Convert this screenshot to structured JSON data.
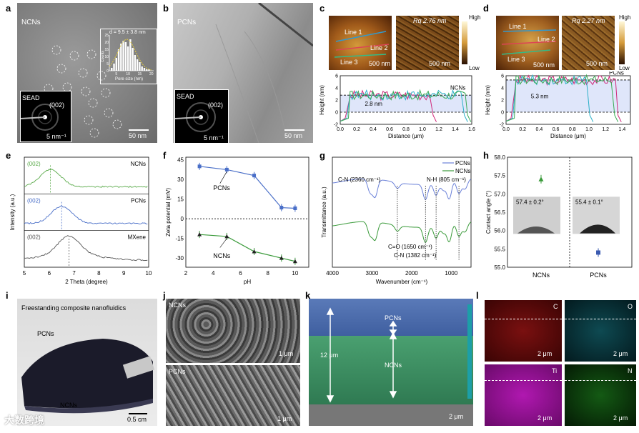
{
  "panels": {
    "a": {
      "letter": "a",
      "title": "NCNs",
      "inset_label": "d = 9.5 ± 3.8 nm",
      "inset_xlabel": "Pore size (nm)",
      "inset_ylabel": "Counts",
      "inset_xticks": [
        "5",
        "10",
        "15",
        "20"
      ],
      "inset_yticks": [
        "0",
        "5",
        "10",
        "15",
        "20",
        "25"
      ],
      "sead": "SEAD",
      "sead_ring": "(002)",
      "sead_scale": "5 nm⁻¹",
      "scale": "50 nm"
    },
    "b": {
      "letter": "b",
      "title": "PCNs",
      "sead": "SEAD",
      "sead_ring": "(002)",
      "sead_scale": "5 nm⁻¹",
      "scale": "50 nm"
    },
    "c": {
      "letter": "c",
      "line1": "Line 1",
      "line2": "Line 2",
      "line3": "Line 3",
      "scale1": "500 nm",
      "rq": "Rq 2.76 nm",
      "scale2": "500 nm",
      "high": "High",
      "low": "Low",
      "sample": "NCNs",
      "thickness": "2.8 nm",
      "ylabel": "Height (nm)",
      "xlabel": "Distance (μm)",
      "xticks": [
        "0.0",
        "0.2",
        "0.4",
        "0.6",
        "0.8",
        "1.0",
        "1.2",
        "1.4",
        "1.6"
      ],
      "yticks": [
        "-2",
        "0",
        "2",
        "4",
        "6"
      ]
    },
    "d": {
      "letter": "d",
      "line1": "Line 1",
      "line2": "Line 2",
      "line3": "Line 3",
      "scale1": "500 nm",
      "rq": "Rq 2.27 nm",
      "scale2": "500 nm",
      "high": "High",
      "low": "Low",
      "sample": "PCNs",
      "thickness": "5.3 nm",
      "ylabel": "Height (nm)",
      "xlabel": "Distance (μm)",
      "xticks": [
        "0.0",
        "0.2",
        "0.4",
        "0.6",
        "0.8",
        "1.0",
        "1.2",
        "1.4"
      ],
      "yticks": [
        "-2",
        "0",
        "2",
        "4",
        "6"
      ]
    },
    "e": {
      "letter": "e",
      "ylabel": "Intensity (a.u.)",
      "xlabel": "2 Theta (degree)",
      "xticks": [
        "5",
        "6",
        "7",
        "8",
        "9",
        "10"
      ],
      "traces": [
        {
          "peak": "(002)",
          "name": "NCNs",
          "color": "#5aaa4a"
        },
        {
          "peak": "(002)",
          "name": "PCNs",
          "color": "#4a6fc8"
        },
        {
          "peak": "(002)",
          "name": "MXene",
          "color": "#555555"
        }
      ]
    },
    "f": {
      "letter": "f",
      "ylabel": "Zeta potential (mV)",
      "xlabel": "pH",
      "xticks": [
        "2",
        "4",
        "6",
        "8",
        "10"
      ],
      "yticks": [
        "-30",
        "-15",
        "0",
        "15",
        "30",
        "45"
      ],
      "pcns": "PCNs",
      "ncns": "NCNs"
    },
    "g": {
      "letter": "g",
      "ylabel": "Transmittance (a.u.)",
      "xlabel": "Wavenumber (cm⁻¹)",
      "xticks": [
        "4000",
        "3000",
        "2000",
        "1000"
      ],
      "legend": [
        "PCNs",
        "NCNs"
      ],
      "ann_cn": "C-N (2360 cm⁻¹)",
      "ann_nh": "N-H (805 cm⁻¹)",
      "ann_co": "C=O (1650 cm⁻¹)",
      "ann_cn2": "C-N (1382 cm⁻¹)"
    },
    "h": {
      "letter": "h",
      "ylabel": "Contact angle (°)",
      "yticks": [
        "55.0",
        "55.5",
        "56.0",
        "56.5",
        "57.0",
        "57.5",
        "58.0"
      ],
      "categories": [
        "NCNs",
        "PCNs"
      ],
      "angle1": "57.4 ± 0.2°",
      "angle2": "55.4 ± 0.1°"
    },
    "i": {
      "letter": "i",
      "caption": "Freestanding composite nanofluidics",
      "pcns": "PCNs",
      "ncns": "NCNs",
      "scale": "0.5 cm"
    },
    "j": {
      "letter": "j",
      "top": "NCNs",
      "bottom": "PCNs",
      "scale1": "1 μm",
      "scale2": "1 μm"
    },
    "k": {
      "letter": "k",
      "pcns": "PCNs",
      "ncns": "NCNs",
      "thickness": "12 μm",
      "scale": "2 μm"
    },
    "l": {
      "letter": "l",
      "maps": [
        {
          "el": "C",
          "scale": "2 μm"
        },
        {
          "el": "O",
          "scale": "2 μm"
        },
        {
          "el": "Ti",
          "scale": "2 μm"
        },
        {
          "el": "N",
          "scale": "2 μm"
        }
      ]
    }
  },
  "watermark": "大数跨境",
  "chart_data": [
    {
      "type": "bar",
      "panel": "a-inset",
      "title": "d = 9.5 ± 3.8 nm",
      "xlabel": "Pore size (nm)",
      "ylabel": "Counts",
      "x": [
        3,
        4,
        5,
        6,
        7,
        8,
        9,
        10,
        11,
        12,
        13,
        14,
        15,
        16,
        17,
        18,
        19,
        20
      ],
      "values": [
        2,
        5,
        9,
        15,
        19,
        21,
        20,
        17,
        22,
        16,
        11,
        8,
        6,
        3,
        2,
        1,
        1,
        0
      ],
      "ylim": [
        0,
        25
      ]
    },
    {
      "type": "line",
      "panel": "f",
      "xlabel": "pH",
      "ylabel": "Zeta potential (mV)",
      "xlim": [
        2,
        11
      ],
      "ylim": [
        -37,
        47
      ],
      "series": [
        {
          "name": "PCNs",
          "x": [
            3,
            5,
            7,
            9,
            10
          ],
          "values": [
            40,
            37.5,
            33,
            8.5,
            8
          ]
        },
        {
          "name": "NCNs",
          "x": [
            3,
            5,
            7,
            9,
            10
          ],
          "values": [
            -12,
            -13.5,
            -25,
            -30,
            -32.5
          ]
        }
      ]
    },
    {
      "type": "scatter",
      "panel": "h",
      "ylabel": "Contact angle (°)",
      "categories": [
        "NCNs",
        "PCNs"
      ],
      "values": [
        57.4,
        55.4
      ],
      "ylim": [
        55.0,
        58.0
      ]
    }
  ]
}
